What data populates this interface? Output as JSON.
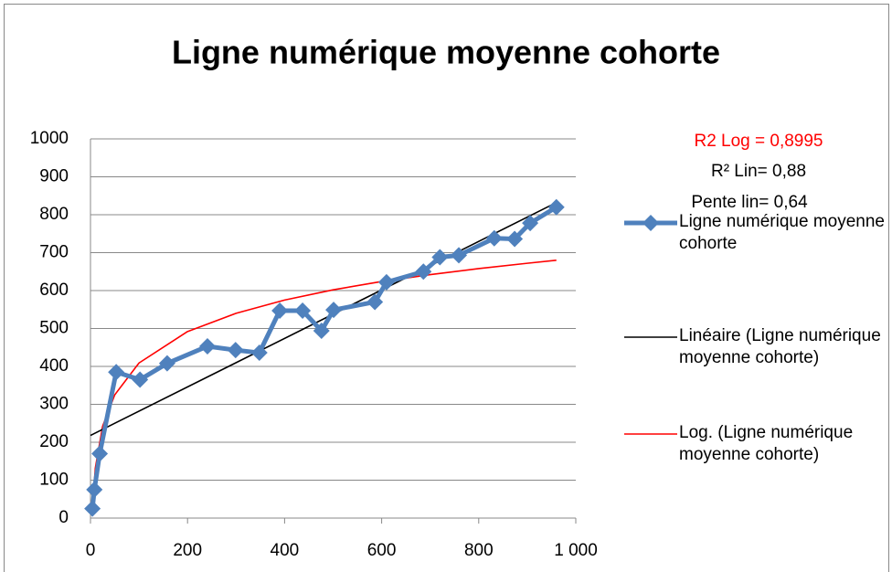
{
  "chart_data": {
    "type": "scatter-line",
    "title": "Ligne numérique moyenne cohorte",
    "annotations": [
      "R2  Log = 0,8995",
      "R² Lin= 0,88",
      "Pente lin= 0,64"
    ],
    "annotation_colors": [
      "#ff0000",
      "#000000",
      "#000000"
    ],
    "xlim": [
      0,
      1000
    ],
    "xticks": [
      0,
      200,
      400,
      600,
      800,
      {
        "value": 1000,
        "label": "1 000"
      }
    ],
    "ylim": [
      0,
      1000
    ],
    "yticks": [
      0,
      100,
      200,
      300,
      400,
      500,
      600,
      700,
      800,
      900,
      1000
    ],
    "grid": true,
    "legend": "right",
    "series": [
      {
        "name": "Ligne numérique moyenne cohorte",
        "color": "#4f81bd",
        "x": [
          4,
          8,
          19,
          53,
          102,
          158,
          241,
          299,
          348,
          390,
          437,
          476,
          501,
          586,
          610,
          686,
          720,
          759,
          832,
          874,
          906,
          960
        ],
        "values": [
          25,
          75,
          170,
          385,
          365,
          408,
          453,
          443,
          436,
          547,
          547,
          494,
          549,
          570,
          622,
          650,
          688,
          693,
          738,
          736,
          778,
          820
        ]
      },
      {
        "name": "Linéaire (Ligne numérique moyenne cohorte)",
        "color": "#000000",
        "x": [
          0,
          960
        ],
        "values": [
          218,
          832
        ]
      },
      {
        "name": "Log. (Ligne numérique moyenne cohorte)",
        "color": "#ff0000",
        "x": [
          4,
          10,
          25,
          50,
          100,
          200,
          300,
          400,
          500,
          600,
          700,
          800,
          900,
          960
        ],
        "values": [
          22,
          132,
          242,
          325,
          409,
          492,
          540,
          575,
          602,
          624,
          642,
          658,
          672,
          680
        ]
      }
    ]
  }
}
